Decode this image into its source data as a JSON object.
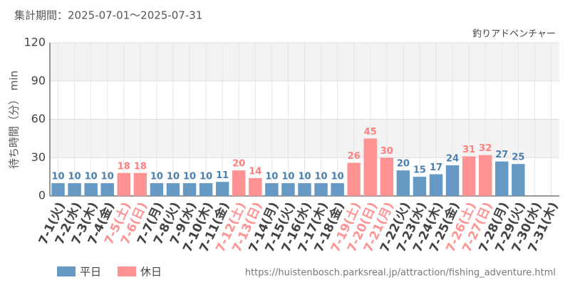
{
  "chart_data": {
    "type": "bar",
    "title": "集計期間：2025-07-01～2025-07-31",
    "subtitle": "釣りアドベンチャー",
    "y_label": "待ち時間（分） min",
    "source": "https://huistenbosch.parksreal.jp/attraction/fishing_adventure.html",
    "categories": [
      "7-1(火)",
      "7-2(水)",
      "7-3(木)",
      "7-4(金)",
      "7-5(土)",
      "7-6(日)",
      "7-7(月)",
      "7-8(火)",
      "7-9(水)",
      "7-10(木)",
      "7-11(金)",
      "7-12(土)",
      "7-13(日)",
      "7-14(月)",
      "7-15(火)",
      "7-16(水)",
      "7-17(木)",
      "7-18(金)",
      "7-19(土)",
      "7-20(日)",
      "7-21(月)",
      "7-22(火)",
      "7-23(水)",
      "7-24(木)",
      "7-25(金)",
      "7-26(土)",
      "7-27(日)",
      "7-28(月)",
      "7-29(火)",
      "7-30(水)",
      "7-31(木)"
    ],
    "series": [
      {
        "name": "平日",
        "color": "#6699c4",
        "values": [
          10,
          10,
          10,
          10,
          null,
          null,
          10,
          10,
          10,
          10,
          11,
          null,
          null,
          10,
          10,
          10,
          10,
          10,
          null,
          null,
          null,
          20,
          15,
          17,
          24,
          null,
          null,
          27,
          25,
          null,
          null
        ]
      },
      {
        "name": "休日",
        "color": "#ff9393",
        "values": [
          null,
          null,
          null,
          null,
          18,
          18,
          null,
          null,
          null,
          null,
          null,
          20,
          14,
          null,
          null,
          null,
          null,
          null,
          26,
          45,
          30,
          null,
          null,
          null,
          null,
          31,
          32,
          null,
          null,
          null,
          null
        ]
      }
    ],
    "ylim": [
      0,
      120
    ],
    "yticks": [
      0,
      30,
      60,
      90,
      120
    ],
    "grid": true
  }
}
